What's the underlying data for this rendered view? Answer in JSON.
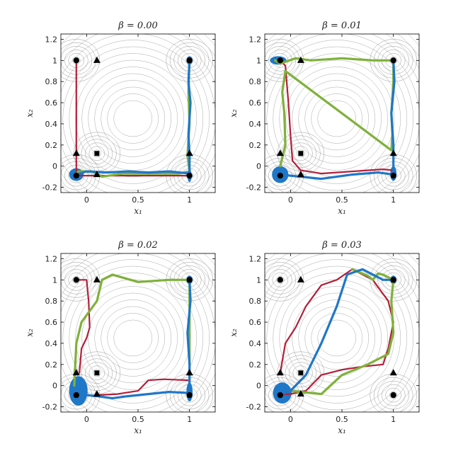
{
  "chart_data": [
    {
      "type": "line",
      "title": "β = 0.00",
      "xlabel": "x₁",
      "ylabel": "x₂",
      "xlim": [
        -0.25,
        1.25
      ],
      "ylim": [
        -0.25,
        1.25
      ],
      "xticks": [
        "0",
        "0.5",
        "1"
      ],
      "yticks": [
        "-0.2",
        "0",
        "0.2",
        "0.4",
        "0.6",
        "0.8",
        "1",
        "1.2"
      ],
      "series": [
        {
          "color": "#b41f3a",
          "x": [
            -0.1,
            -0.1,
            -0.1,
            -0.05,
            0.2,
            0.5,
            0.8,
            1.0
          ],
          "y": [
            1.0,
            0.6,
            -0.08,
            -0.09,
            -0.09,
            -0.09,
            -0.09,
            -0.09
          ]
        },
        {
          "color": "#7fb13a",
          "x": [
            -0.1,
            -0.08,
            0.05,
            0.15,
            0.35,
            0.6,
            0.9,
            1.0,
            0.98,
            1.0,
            0.99,
            1.0
          ],
          "y": [
            -0.08,
            -0.05,
            -0.05,
            -0.1,
            -0.07,
            -0.07,
            -0.07,
            -0.05,
            0.1,
            0.4,
            0.7,
            1.0
          ]
        },
        {
          "color": "#1f77c8",
          "x": [
            -0.1,
            0.0,
            0.2,
            0.4,
            0.6,
            0.8,
            1.0,
            1.0,
            0.99,
            1.01,
            0.99,
            1.0
          ],
          "y": [
            -0.08,
            -0.05,
            -0.06,
            -0.05,
            -0.06,
            -0.05,
            -0.07,
            0.1,
            0.3,
            0.6,
            0.8,
            1.0
          ]
        }
      ],
      "markers": [
        {
          "shape": "circle",
          "x": -0.1,
          "y": 1.0
        },
        {
          "shape": "circle",
          "x": 1.0,
          "y": 1.0
        },
        {
          "shape": "circle",
          "x": -0.1,
          "y": -0.09
        },
        {
          "shape": "circle",
          "x": 1.0,
          "y": -0.09
        },
        {
          "shape": "triangle",
          "x": 0.1,
          "y": 1.0
        },
        {
          "shape": "triangle",
          "x": -0.1,
          "y": 0.12
        },
        {
          "shape": "triangle",
          "x": 1.0,
          "y": 0.12
        },
        {
          "shape": "triangle",
          "x": 0.1,
          "y": -0.08
        },
        {
          "shape": "square",
          "x": 0.1,
          "y": 0.12
        }
      ],
      "clouds": [
        {
          "x": -0.1,
          "y": -0.08,
          "rx": 0.07,
          "ry": 0.06
        },
        {
          "x": 1.0,
          "y": -0.09,
          "rx": 0.02,
          "ry": 0.06
        },
        {
          "x": 1.0,
          "y": 1.0,
          "rx": 0.03,
          "ry": 0.04
        }
      ]
    },
    {
      "type": "line",
      "title": "β = 0.01",
      "xlabel": "x₁",
      "ylabel": "x₂",
      "xlim": [
        -0.25,
        1.25
      ],
      "ylim": [
        -0.25,
        1.25
      ],
      "xticks": [
        "0",
        "0.5",
        "1"
      ],
      "yticks": [
        "-0.2",
        "0",
        "0.2",
        "0.4",
        "0.6",
        "0.8",
        "1",
        "1.2"
      ],
      "series": [
        {
          "color": "#b41f3a",
          "x": [
            -0.1,
            -0.05,
            -0.02,
            0.0,
            0.02,
            0.1,
            0.3,
            0.6,
            0.9,
            1.0
          ],
          "y": [
            1.0,
            0.95,
            0.6,
            0.3,
            0.05,
            -0.04,
            -0.07,
            -0.05,
            -0.03,
            -0.04
          ]
        },
        {
          "color": "#7fb13a",
          "x": [
            -0.15,
            -0.1,
            0.05,
            0.2,
            0.5,
            0.8,
            1.0,
            1.0,
            0.98,
            0.99,
            0.98,
            -0.05,
            -0.08,
            -0.06,
            -0.05,
            -0.1
          ],
          "y": [
            1.0,
            0.97,
            1.02,
            1.0,
            1.02,
            1.0,
            1.0,
            0.8,
            0.5,
            0.3,
            0.15,
            0.9,
            0.7,
            0.5,
            0.2,
            0.0
          ]
        },
        {
          "color": "#1f77c8",
          "x": [
            -0.1,
            0.1,
            0.3,
            0.6,
            0.85,
            1.0,
            1.0,
            0.98,
            1.01,
            1.0
          ],
          "y": [
            -0.08,
            -0.1,
            -0.12,
            -0.08,
            -0.06,
            -0.08,
            0.2,
            0.5,
            0.8,
            1.0
          ]
        }
      ],
      "markers": [
        {
          "shape": "circle",
          "x": -0.1,
          "y": 1.0
        },
        {
          "shape": "circle",
          "x": 1.0,
          "y": 1.0
        },
        {
          "shape": "circle",
          "x": -0.1,
          "y": -0.09
        },
        {
          "shape": "circle",
          "x": 1.0,
          "y": -0.09
        },
        {
          "shape": "triangle",
          "x": 0.1,
          "y": 1.0
        },
        {
          "shape": "triangle",
          "x": -0.1,
          "y": 0.12
        },
        {
          "shape": "triangle",
          "x": 1.0,
          "y": 0.12
        },
        {
          "shape": "triangle",
          "x": 0.1,
          "y": -0.08
        },
        {
          "shape": "square",
          "x": 0.1,
          "y": 0.12
        }
      ],
      "clouds": [
        {
          "x": -0.1,
          "y": -0.08,
          "rx": 0.08,
          "ry": 0.08
        },
        {
          "x": 1.0,
          "y": -0.07,
          "rx": 0.03,
          "ry": 0.07
        },
        {
          "x": -0.12,
          "y": 1.0,
          "rx": 0.08,
          "ry": 0.04
        }
      ]
    },
    {
      "type": "line",
      "title": "β = 0.02",
      "xlabel": "x₁",
      "ylabel": "x₂",
      "xlim": [
        -0.25,
        1.25
      ],
      "ylim": [
        -0.25,
        1.25
      ],
      "xticks": [
        "0",
        "0.5",
        "1"
      ],
      "yticks": [
        "-0.2",
        "0",
        "0.2",
        "0.4",
        "0.6",
        "0.8",
        "1",
        "1.2"
      ],
      "series": [
        {
          "color": "#b41f3a",
          "x": [
            -0.1,
            0.0,
            0.02,
            0.03,
            0.0,
            -0.05,
            -0.07
          ],
          "y": [
            1.0,
            1.0,
            0.8,
            0.55,
            0.45,
            0.35,
            0.12
          ]
        },
        {
          "color": "#b41f3a",
          "x": [
            0.1,
            0.3,
            0.5,
            0.6,
            0.75,
            1.0
          ],
          "y": [
            -0.09,
            -0.08,
            -0.05,
            0.05,
            0.06,
            0.05
          ]
        },
        {
          "color": "#7fb13a",
          "x": [
            -0.12,
            -0.1,
            -0.05,
            0.1,
            0.15,
            0.25,
            0.5,
            0.8,
            1.0,
            1.0
          ],
          "y": [
            0.0,
            0.4,
            0.6,
            0.8,
            1.0,
            1.05,
            0.98,
            1.0,
            1.0,
            0.2
          ]
        },
        {
          "color": "#1f77c8",
          "x": [
            -0.1,
            0.1,
            0.25,
            0.4,
            0.6,
            0.8,
            1.0,
            1.0,
            0.98,
            1.01,
            1.0
          ],
          "y": [
            -0.08,
            -0.1,
            -0.12,
            -0.1,
            -0.08,
            -0.06,
            -0.07,
            0.2,
            0.5,
            0.8,
            1.0
          ]
        }
      ],
      "markers": [
        {
          "shape": "circle",
          "x": -0.1,
          "y": 1.0
        },
        {
          "shape": "circle",
          "x": 1.0,
          "y": 1.0
        },
        {
          "shape": "circle",
          "x": -0.1,
          "y": -0.09
        },
        {
          "shape": "circle",
          "x": 1.0,
          "y": -0.09
        },
        {
          "shape": "triangle",
          "x": 0.1,
          "y": 1.0
        },
        {
          "shape": "triangle",
          "x": -0.1,
          "y": 0.12
        },
        {
          "shape": "triangle",
          "x": 1.0,
          "y": 0.12
        },
        {
          "shape": "triangle",
          "x": 0.1,
          "y": -0.08
        },
        {
          "shape": "square",
          "x": 0.1,
          "y": 0.12
        }
      ],
      "clouds": [
        {
          "x": -0.08,
          "y": -0.05,
          "rx": 0.09,
          "ry": 0.14
        },
        {
          "x": 1.0,
          "y": -0.06,
          "rx": 0.03,
          "ry": 0.09
        },
        {
          "x": 1.0,
          "y": 1.0,
          "rx": 0.03,
          "ry": 0.04
        }
      ]
    },
    {
      "type": "line",
      "title": "β = 0.03",
      "xlabel": "x₁",
      "ylabel": "x₂",
      "xlim": [
        -0.25,
        1.25
      ],
      "ylim": [
        -0.25,
        1.25
      ],
      "xticks": [
        "0",
        "0.5",
        "1"
      ],
      "yticks": [
        "-0.2",
        "0",
        "0.2",
        "0.4",
        "0.6",
        "0.8",
        "1",
        "1.2"
      ],
      "series": [
        {
          "color": "#b41f3a",
          "x": [
            -0.1,
            -0.05,
            0.05,
            0.15,
            0.3,
            0.45,
            0.6,
            0.8,
            0.95,
            1.0,
            0.95,
            0.9,
            0.7,
            0.5,
            0.3,
            0.15,
            0.0,
            -0.1
          ],
          "y": [
            0.12,
            0.4,
            0.55,
            0.75,
            0.95,
            1.0,
            1.1,
            1.0,
            0.8,
            0.6,
            0.35,
            0.2,
            0.18,
            0.15,
            0.1,
            -0.05,
            -0.08,
            -0.08
          ]
        },
        {
          "color": "#7fb13a",
          "x": [
            -0.1,
            0.0,
            0.2,
            0.3,
            0.5,
            0.75,
            0.95,
            1.0,
            0.98,
            1.0,
            0.9,
            0.85,
            0.8,
            0.75,
            0.6
          ],
          "y": [
            -0.08,
            -0.05,
            -0.07,
            -0.08,
            0.1,
            0.2,
            0.3,
            0.5,
            0.8,
            1.0,
            1.05,
            1.06,
            1.0,
            1.04,
            1.1
          ]
        },
        {
          "color": "#1f77c8",
          "x": [
            -0.1,
            0.0,
            0.15,
            0.3,
            0.45,
            0.55,
            0.7,
            0.9,
            1.0
          ],
          "y": [
            -0.08,
            -0.05,
            0.1,
            0.4,
            0.75,
            1.05,
            1.1,
            1.0,
            1.0
          ]
        }
      ],
      "markers": [
        {
          "shape": "circle",
          "x": -0.1,
          "y": 1.0
        },
        {
          "shape": "circle",
          "x": 1.0,
          "y": 1.0
        },
        {
          "shape": "circle",
          "x": -0.1,
          "y": -0.09
        },
        {
          "shape": "circle",
          "x": 1.0,
          "y": -0.09
        },
        {
          "shape": "triangle",
          "x": 0.1,
          "y": 1.0
        },
        {
          "shape": "triangle",
          "x": -0.1,
          "y": 0.12
        },
        {
          "shape": "triangle",
          "x": 1.0,
          "y": 0.12
        },
        {
          "shape": "triangle",
          "x": 0.1,
          "y": -0.08
        },
        {
          "shape": "square",
          "x": 0.1,
          "y": 0.12
        }
      ],
      "clouds": [
        {
          "x": -0.08,
          "y": -0.07,
          "rx": 0.09,
          "ry": 0.1
        },
        {
          "x": 1.0,
          "y": 1.0,
          "rx": 0.03,
          "ry": 0.04
        }
      ]
    }
  ]
}
